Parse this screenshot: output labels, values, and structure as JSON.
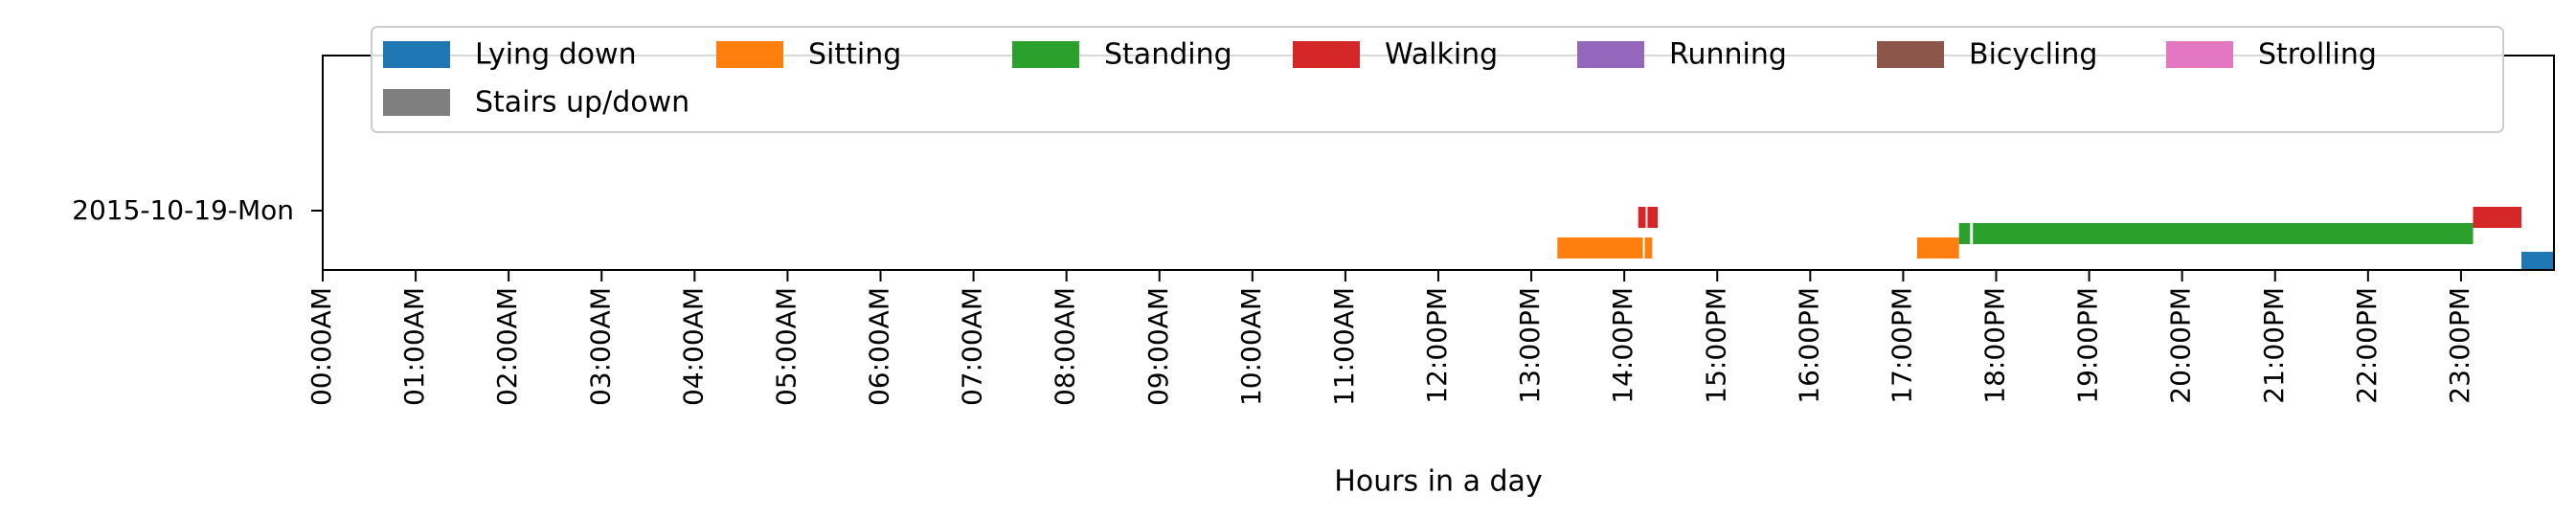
{
  "chart_data": {
    "type": "timeline",
    "title": "",
    "xlabel": "Hours in a day",
    "ylabel": "",
    "xlim": [
      0,
      24
    ],
    "row_label": "2015-10-19-Mon",
    "legend_position": "top",
    "grid": false,
    "x_ticks": [
      {
        "h": 0,
        "label": "00:00AM"
      },
      {
        "h": 1,
        "label": "01:00AM"
      },
      {
        "h": 2,
        "label": "02:00AM"
      },
      {
        "h": 3,
        "label": "03:00AM"
      },
      {
        "h": 4,
        "label": "04:00AM"
      },
      {
        "h": 5,
        "label": "05:00AM"
      },
      {
        "h": 6,
        "label": "06:00AM"
      },
      {
        "h": 7,
        "label": "07:00AM"
      },
      {
        "h": 8,
        "label": "08:00AM"
      },
      {
        "h": 9,
        "label": "09:00AM"
      },
      {
        "h": 10,
        "label": "10:00AM"
      },
      {
        "h": 11,
        "label": "11:00AM"
      },
      {
        "h": 12,
        "label": "12:00PM"
      },
      {
        "h": 13,
        "label": "13:00PM"
      },
      {
        "h": 14,
        "label": "14:00PM"
      },
      {
        "h": 15,
        "label": "15:00PM"
      },
      {
        "h": 16,
        "label": "16:00PM"
      },
      {
        "h": 17,
        "label": "17:00PM"
      },
      {
        "h": 18,
        "label": "18:00PM"
      },
      {
        "h": 19,
        "label": "19:00PM"
      },
      {
        "h": 20,
        "label": "20:00PM"
      },
      {
        "h": 21,
        "label": "21:00PM"
      },
      {
        "h": 22,
        "label": "22:00PM"
      },
      {
        "h": 23,
        "label": "23:00PM"
      }
    ],
    "series": [
      {
        "name": "Lying down",
        "key": "lying-down",
        "color": "#1f77b4",
        "lane": 0,
        "intervals": [
          [
            23.65,
            24.0
          ]
        ]
      },
      {
        "name": "Sitting",
        "key": "sitting",
        "color": "#ff7f0e",
        "lane": 1,
        "intervals": [
          [
            13.28,
            14.2
          ],
          [
            14.22,
            14.3
          ],
          [
            17.15,
            17.6
          ]
        ]
      },
      {
        "name": "Standing",
        "key": "standing",
        "color": "#2ca02c",
        "lane": 2,
        "intervals": [
          [
            17.6,
            17.72
          ],
          [
            17.75,
            23.13
          ]
        ]
      },
      {
        "name": "Walking",
        "key": "walking",
        "color": "#d62728",
        "lane": 3,
        "intervals": [
          [
            14.15,
            14.23
          ],
          [
            14.25,
            14.36
          ],
          [
            23.13,
            23.65
          ]
        ]
      },
      {
        "name": "Running",
        "key": "running",
        "color": "#9467bd",
        "lane": 4,
        "intervals": []
      },
      {
        "name": "Bicycling",
        "key": "bicycling",
        "color": "#8c564b",
        "lane": 5,
        "intervals": []
      },
      {
        "name": "Strolling",
        "key": "strolling",
        "color": "#e377c2",
        "lane": 6,
        "intervals": []
      },
      {
        "name": "Stairs up/down",
        "key": "stairs-up-down",
        "color": "#7f7f7f",
        "lane": 7,
        "intervals": []
      }
    ]
  }
}
